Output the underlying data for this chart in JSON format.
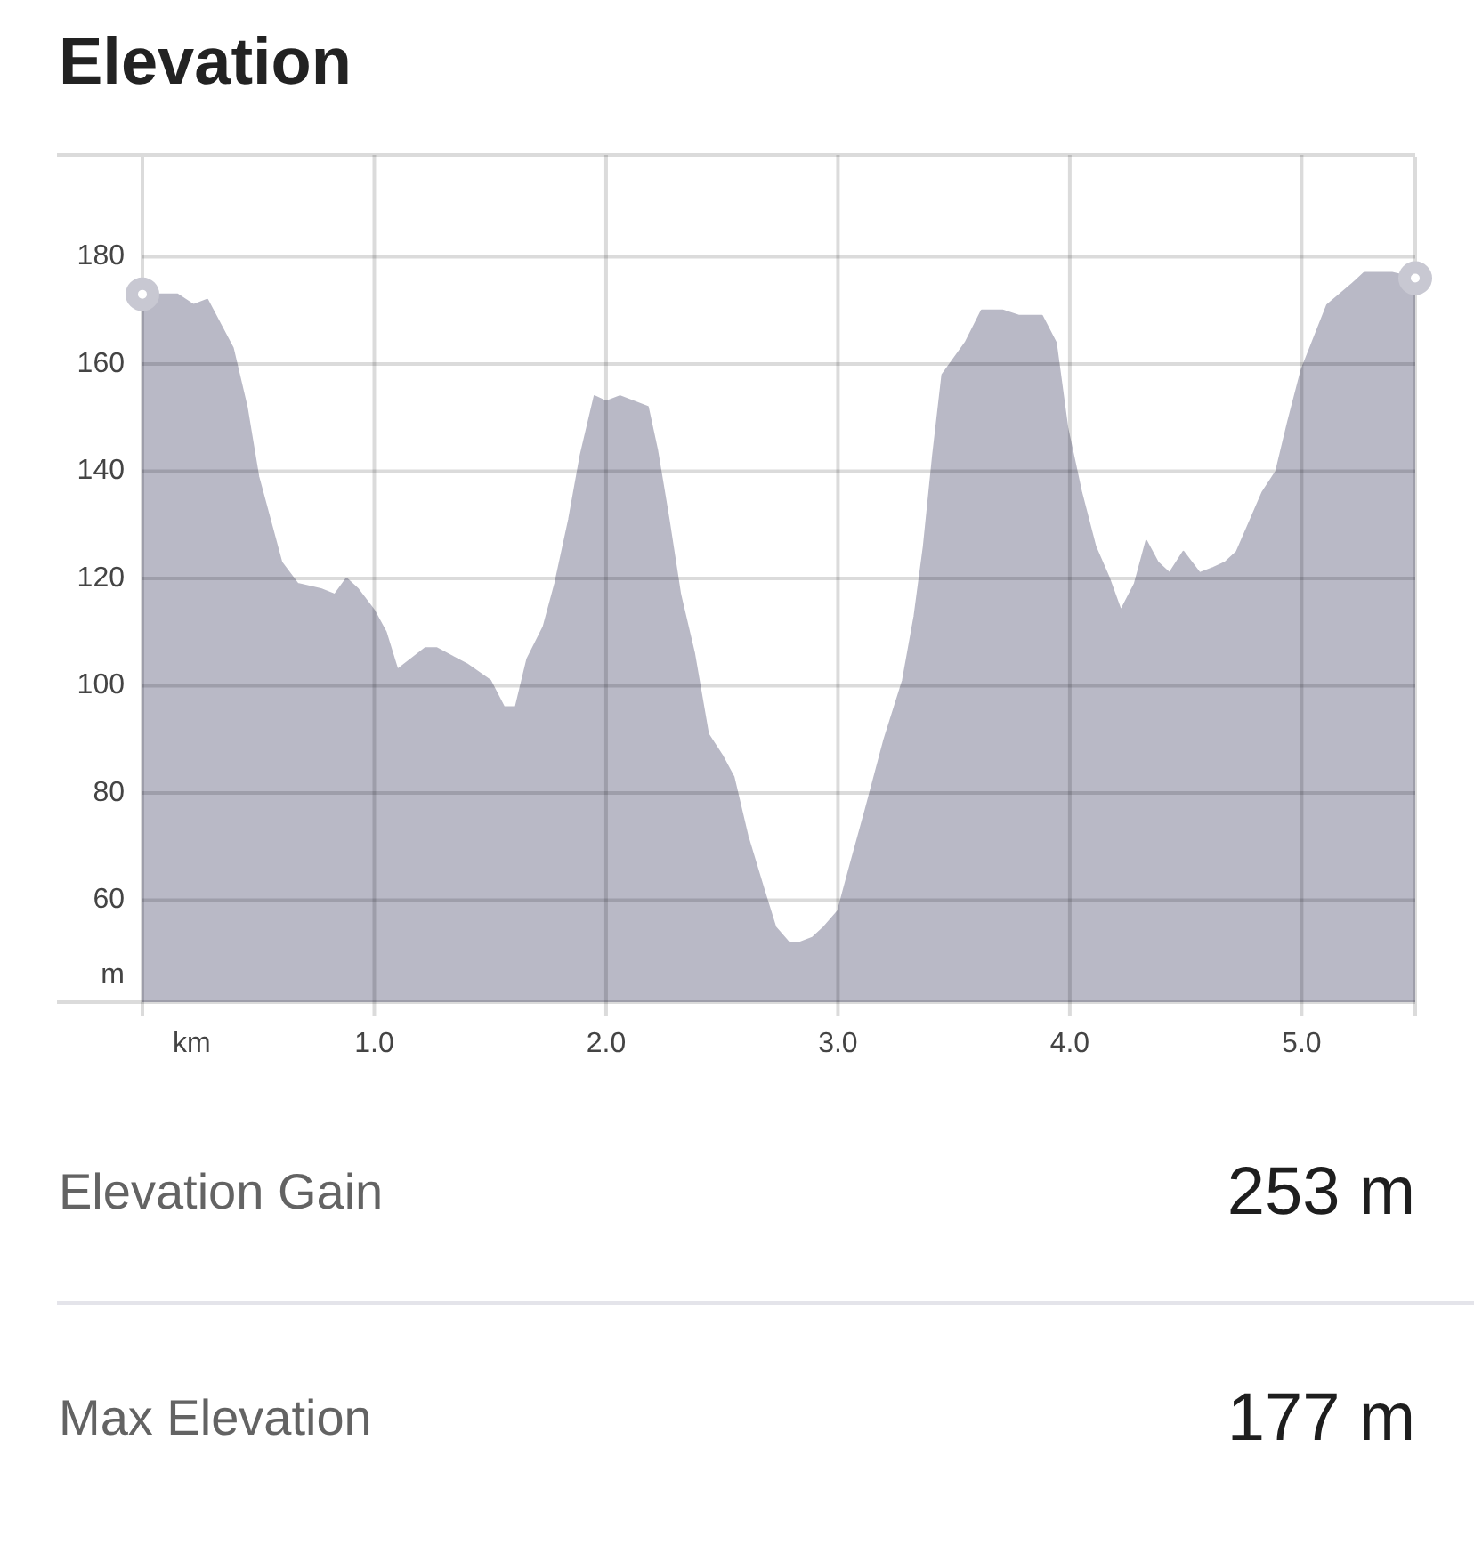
{
  "chart_data": {
    "type": "area",
    "title": "Elevation",
    "xlabel": "km",
    "ylabel": "m",
    "x": [
      0,
      0.09,
      0.15,
      0.22,
      0.28,
      0.39,
      0.45,
      0.5,
      0.6,
      0.67,
      0.77,
      0.83,
      0.88,
      0.93,
      1.0,
      1.05,
      1.1,
      1.22,
      1.27,
      1.4,
      1.5,
      1.56,
      1.61,
      1.66,
      1.73,
      1.78,
      1.84,
      1.89,
      1.95,
      2.0,
      2.06,
      2.18,
      2.22,
      2.27,
      2.32,
      2.38,
      2.44,
      2.5,
      2.55,
      2.61,
      2.68,
      2.73,
      2.79,
      2.83,
      2.89,
      2.94,
      3.0,
      3.05,
      3.12,
      3.2,
      3.28,
      3.33,
      3.37,
      3.41,
      3.45,
      3.55,
      3.62,
      3.68,
      3.71,
      3.78,
      3.88,
      3.94,
      3.99,
      4.05,
      4.11,
      4.17,
      4.22,
      4.28,
      4.33,
      4.38,
      4.43,
      4.49,
      4.56,
      4.62,
      4.67,
      4.72,
      4.83,
      4.89,
      4.94,
      5.0,
      5.11,
      5.22,
      5.27,
      5.39,
      5.49
    ],
    "series": [
      {
        "color": "#b9b9c6",
        "values": [
          173,
          173,
          173,
          171,
          172,
          163,
          152,
          139,
          123,
          119,
          118,
          117,
          120,
          118,
          114,
          110,
          103,
          107,
          107,
          104,
          101,
          96,
          96,
          105,
          111,
          119,
          131,
          143,
          154,
          153,
          154,
          152,
          144,
          131,
          117,
          106,
          91,
          87,
          83,
          72,
          62,
          55,
          52,
          52,
          53,
          55,
          58,
          66,
          77,
          90,
          101,
          113,
          126,
          143,
          158,
          164,
          170,
          170,
          170,
          169,
          169,
          164,
          148,
          136,
          126,
          120,
          114,
          119,
          127,
          123,
          121,
          125,
          121,
          122,
          123,
          125,
          136,
          140,
          149,
          159,
          171,
          175,
          177,
          177,
          176
        ]
      },
      {
        "type": "scatter",
        "color": "#c8c8d2",
        "x": [
          0,
          5.49
        ],
        "values": [
          173,
          176
        ],
        "marker": "circle"
      }
    ],
    "xlim": [
      0,
      5.49
    ],
    "xticks": [
      {
        "value": 1,
        "label": "1.0"
      },
      {
        "value": 2,
        "label": "2.0"
      },
      {
        "value": 3,
        "label": "3.0"
      },
      {
        "value": 4,
        "label": "4.0"
      },
      {
        "value": 5,
        "label": "5.0"
      }
    ],
    "ylim": [
      41,
      199
    ],
    "yticks": [
      60,
      80,
      100,
      120,
      140,
      160,
      180
    ],
    "grid": true,
    "annotations": [
      "Elevation Gain",
      "253 m",
      "Max Elevation",
      "177 m"
    ]
  }
}
